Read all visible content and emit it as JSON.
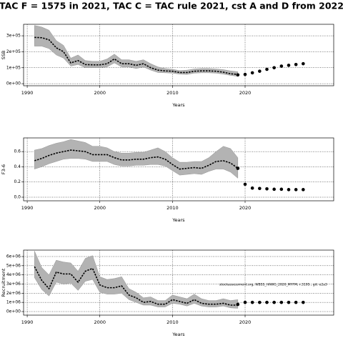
{
  "title": "TAC F = 1575 in 2021, TAC C = TAC rule 2021, cst A and D from 2022",
  "chart_data": [
    {
      "type": "line",
      "y_label": "SSB",
      "x_label": "Years",
      "color": "#000000",
      "band_color": "#b3b3b3",
      "grid": true,
      "x": [
        1991,
        1992,
        1993,
        1994,
        1995,
        1996,
        1997,
        1998,
        1999,
        2000,
        2001,
        2002,
        2003,
        2004,
        2005,
        2006,
        2007,
        2008,
        2009,
        2010,
        2011,
        2012,
        2013,
        2014,
        2015,
        2016,
        2017,
        2018,
        2019
      ],
      "values": [
        290000,
        288000,
        275000,
        225000,
        200000,
        130000,
        145000,
        120000,
        118000,
        118000,
        125000,
        155000,
        125000,
        125000,
        115000,
        125000,
        100000,
        85000,
        80000,
        78000,
        70000,
        70000,
        78000,
        80000,
        80000,
        78000,
        72000,
        62000,
        58000
      ],
      "upper": [
        365000,
        355000,
        335000,
        270000,
        240000,
        160000,
        180000,
        145000,
        140000,
        140000,
        155000,
        185000,
        150000,
        150000,
        140000,
        150000,
        125000,
        105000,
        95000,
        90000,
        82000,
        85000,
        92000,
        95000,
        95000,
        92000,
        88000,
        80000,
        75000
      ],
      "lower": [
        235000,
        235000,
        220000,
        180000,
        160000,
        110000,
        120000,
        100000,
        100000,
        100000,
        105000,
        130000,
        105000,
        105000,
        95000,
        105000,
        85000,
        70000,
        68000,
        66000,
        60000,
        58000,
        66000,
        68000,
        68000,
        66000,
        60000,
        52000,
        46000
      ],
      "x_proj": [
        2019,
        2020,
        2021,
        2022,
        2023,
        2024,
        2025,
        2026,
        2027,
        2028
      ],
      "projection": [
        55000,
        58000,
        68000,
        78000,
        90000,
        100000,
        110000,
        115000,
        120000,
        125000
      ],
      "xlim": [
        1989.5,
        2032.2
      ],
      "xticks": [
        1990,
        2000,
        2010,
        2020
      ],
      "ylim": [
        -13000,
        372000
      ],
      "yticks": [
        {
          "value": 0,
          "label": "0e+00"
        },
        {
          "value": 100000,
          "label": "1e+05"
        },
        {
          "value": 200000,
          "label": "2e+05"
        },
        {
          "value": 300000,
          "label": "3e+05"
        }
      ]
    },
    {
      "type": "line",
      "y_label": "F3-6",
      "x_label": "Years",
      "color": "#000000",
      "band_color": "#b3b3b3",
      "grid": true,
      "x": [
        1991,
        1992,
        1993,
        1994,
        1995,
        1996,
        1997,
        1998,
        1999,
        2000,
        2001,
        2002,
        2003,
        2004,
        2005,
        2006,
        2007,
        2008,
        2009,
        2010,
        2011,
        2012,
        2013,
        2014,
        2015,
        2016,
        2017,
        2018,
        2019
      ],
      "values": [
        0.48,
        0.51,
        0.55,
        0.58,
        0.6,
        0.62,
        0.61,
        0.6,
        0.56,
        0.56,
        0.56,
        0.52,
        0.49,
        0.49,
        0.5,
        0.5,
        0.52,
        0.53,
        0.5,
        0.43,
        0.37,
        0.38,
        0.39,
        0.38,
        0.42,
        0.47,
        0.48,
        0.45,
        0.38
      ],
      "upper": [
        0.62,
        0.64,
        0.68,
        0.71,
        0.73,
        0.76,
        0.74,
        0.72,
        0.67,
        0.67,
        0.65,
        0.6,
        0.58,
        0.58,
        0.59,
        0.59,
        0.62,
        0.65,
        0.6,
        0.52,
        0.46,
        0.46,
        0.47,
        0.47,
        0.52,
        0.6,
        0.67,
        0.64,
        0.52
      ],
      "lower": [
        0.37,
        0.4,
        0.44,
        0.47,
        0.5,
        0.51,
        0.51,
        0.5,
        0.47,
        0.47,
        0.47,
        0.43,
        0.41,
        0.41,
        0.42,
        0.42,
        0.43,
        0.43,
        0.41,
        0.35,
        0.29,
        0.3,
        0.31,
        0.3,
        0.34,
        0.37,
        0.37,
        0.33,
        0.25
      ],
      "x_proj": [
        2019,
        2020,
        2021,
        2022,
        2023,
        2024,
        2025,
        2026,
        2027,
        2028
      ],
      "projection": [
        0.38,
        0.17,
        0.12,
        0.115,
        0.11,
        0.105,
        0.105,
        0.1,
        0.1,
        0.1
      ],
      "xlim": [
        1989.5,
        2032.2
      ],
      "xticks": [
        1990,
        2000,
        2010,
        2020
      ],
      "ylim": [
        -0.047,
        0.78
      ],
      "yticks": [
        {
          "value": 0,
          "label": "0.0"
        },
        0.2,
        0.4,
        0.6
      ]
    },
    {
      "type": "line",
      "y_label": "Recruitment",
      "x_label": "Years",
      "color": "#000000",
      "band_color": "#b3b3b3",
      "grid": true,
      "annotation": "stockassessment.org, WBSS_HAWG_2020_MYFM, r:3195 , git: e2a3",
      "x": [
        1991,
        1992,
        1993,
        1994,
        1995,
        1996,
        1997,
        1998,
        1999,
        2000,
        2001,
        2002,
        2003,
        2004,
        2005,
        2006,
        2007,
        2008,
        2009,
        2010,
        2011,
        2012,
        2013,
        2014,
        2015,
        2016,
        2017,
        2018,
        2019
      ],
      "values": [
        4900000,
        3400000,
        2500000,
        4300000,
        4100000,
        4100000,
        3200000,
        4400000,
        4700000,
        2900000,
        2600000,
        2600000,
        2800000,
        1800000,
        1500000,
        1000000,
        1100000,
        800000,
        800000,
        1300000,
        1100000,
        900000,
        1300000,
        900000,
        800000,
        800000,
        900000,
        700000,
        700000
      ],
      "upper": [
        6600000,
        4800000,
        4000000,
        5600000,
        5400000,
        5300000,
        4400000,
        5800000,
        6100000,
        3800000,
        3500000,
        3600000,
        3800000,
        2500000,
        2100000,
        1500000,
        1600000,
        1200000,
        1200000,
        1800000,
        1600000,
        1400000,
        1900000,
        1400000,
        1200000,
        1200000,
        1400000,
        1200000,
        1300000
      ],
      "lower": [
        3700000,
        2400000,
        1700000,
        3200000,
        3000000,
        3100000,
        2300000,
        3300000,
        3500000,
        2100000,
        1900000,
        1900000,
        2000000,
        1300000,
        1000000,
        700000,
        700000,
        500000,
        500000,
        900000,
        800000,
        600000,
        900000,
        600000,
        500000,
        500000,
        600000,
        400000,
        350000
      ],
      "x_proj": [
        2019,
        2020,
        2021,
        2022,
        2023,
        2024,
        2025,
        2026,
        2027,
        2028
      ],
      "projection": [
        780000,
        1000000,
        1000000,
        1000000,
        1000000,
        1000000,
        1000000,
        1000000,
        1000000,
        1000000
      ],
      "xlim": [
        1989.5,
        2032.2
      ],
      "xticks": [
        1990,
        2000,
        2010,
        2020
      ],
      "ylim": [
        -390000,
        6700000
      ],
      "yticks": [
        {
          "value": 0,
          "label": "0e+00"
        },
        {
          "value": 1000000,
          "label": "1e+06"
        },
        {
          "value": 2000000,
          "label": "2e+06"
        },
        {
          "value": 3000000,
          "label": "3e+06"
        },
        {
          "value": 4000000,
          "label": "4e+06"
        },
        {
          "value": 5000000,
          "label": "5e+06"
        },
        {
          "value": 6000000,
          "label": "6e+06"
        }
      ]
    }
  ]
}
